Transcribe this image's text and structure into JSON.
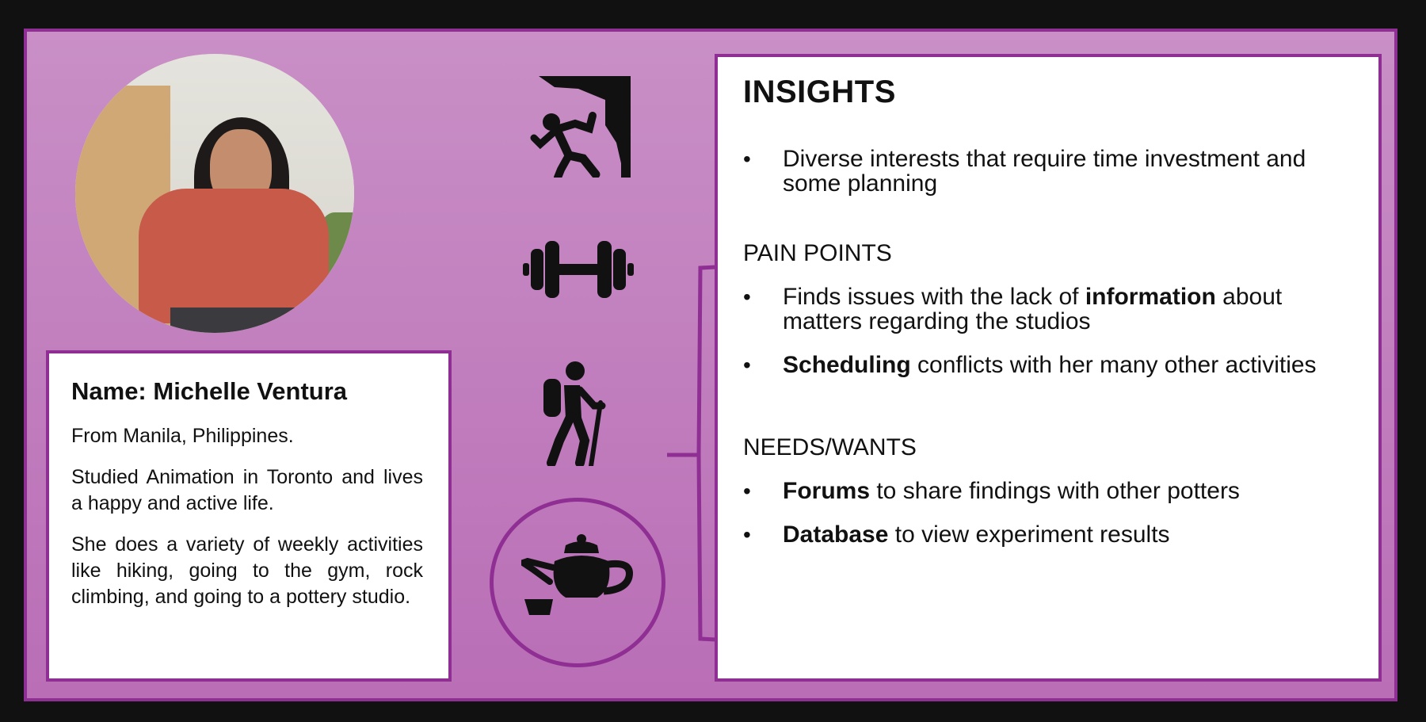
{
  "persona": {
    "name_line": "Name: Michelle Ventura",
    "paragraphs": [
      "From Manila, Philippines.",
      "Studied Animation in Toronto and lives a happy and active life.",
      "She does a variety of weekly activities like hiking, going to the gym, rock climbing, and going to a pottery studio."
    ],
    "photo_icon": "portrait-photo"
  },
  "activities": [
    {
      "name": "rock-climbing-icon"
    },
    {
      "name": "dumbbell-icon"
    },
    {
      "name": "hiking-icon"
    },
    {
      "name": "teapot-icon",
      "highlighted": true
    }
  ],
  "insights": {
    "title": "INSIGHTS",
    "general": [
      {
        "pre": "Diverse interests that require time investment and some planning",
        "bold": "",
        "post": ""
      }
    ],
    "pain_points_title": "PAIN POINTS",
    "pain_points": [
      {
        "pre": "Finds issues with the lack of ",
        "bold": "information",
        "post": " about matters regarding the studios"
      },
      {
        "pre": "",
        "bold": "Scheduling",
        "post": " conflicts with her many other activities"
      }
    ],
    "needs_title": "NEEDS/WANTS",
    "needs": [
      {
        "pre": "",
        "bold": "Forums",
        "post": " to share findings with other potters"
      },
      {
        "pre": "",
        "bold": "Database",
        "post": " to view experiment results"
      }
    ]
  },
  "colors": {
    "accent": "#8f2f93",
    "background": "#c98fc6",
    "panel": "#ffffff"
  }
}
